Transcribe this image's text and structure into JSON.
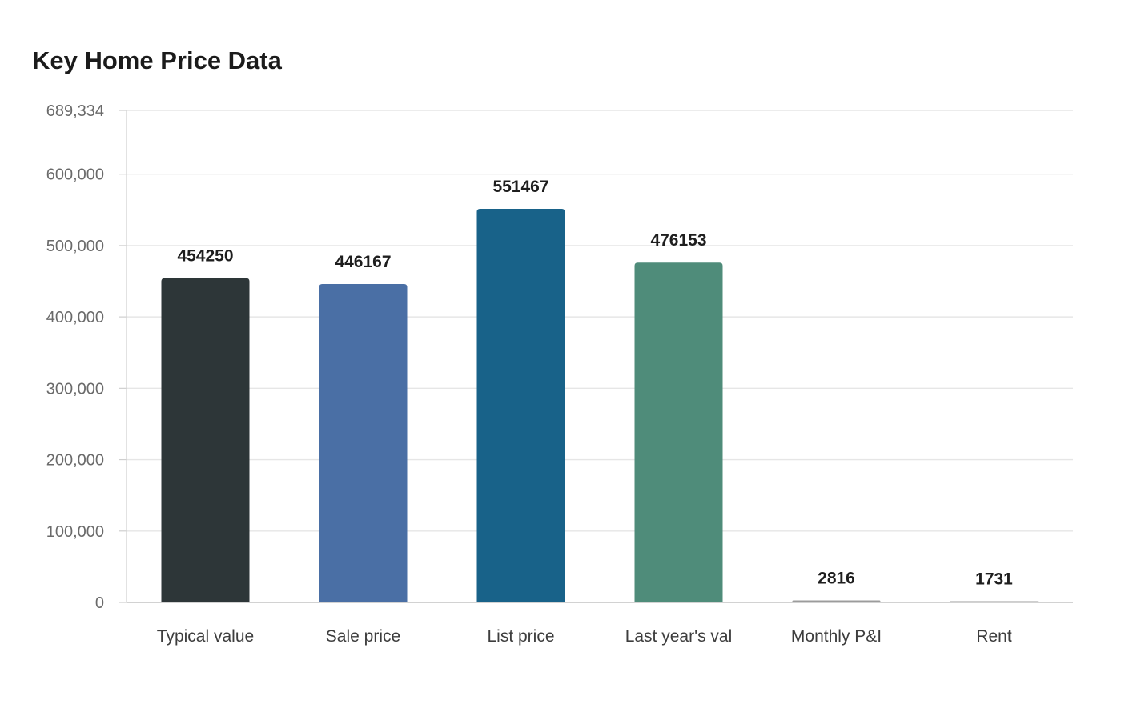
{
  "chart_data": {
    "type": "bar",
    "title": "Key Home Price Data",
    "xlabel": "",
    "ylabel": "",
    "categories": [
      "Typical value",
      "Sale price",
      "List price",
      "Last year's val",
      "Monthly P&I",
      "Rent"
    ],
    "values": [
      454250,
      446167,
      551467,
      476153,
      2816,
      1731
    ],
    "value_labels": [
      "454250",
      "446167",
      "551467",
      "476153",
      "2816",
      "1731"
    ],
    "colors": [
      "#2d3638",
      "#4a6fa5",
      "#186289",
      "#4f8c7a",
      "#9c9c9c",
      "#9c9c9c"
    ],
    "ylim": [
      0,
      689334
    ],
    "yticks": [
      0,
      100000,
      200000,
      300000,
      400000,
      500000,
      600000,
      689334
    ],
    "ytick_labels": [
      "0",
      "100,000",
      "200,000",
      "300,000",
      "400,000",
      "500,000",
      "600,000",
      "689,334"
    ],
    "grid": true,
    "legend": "none"
  }
}
